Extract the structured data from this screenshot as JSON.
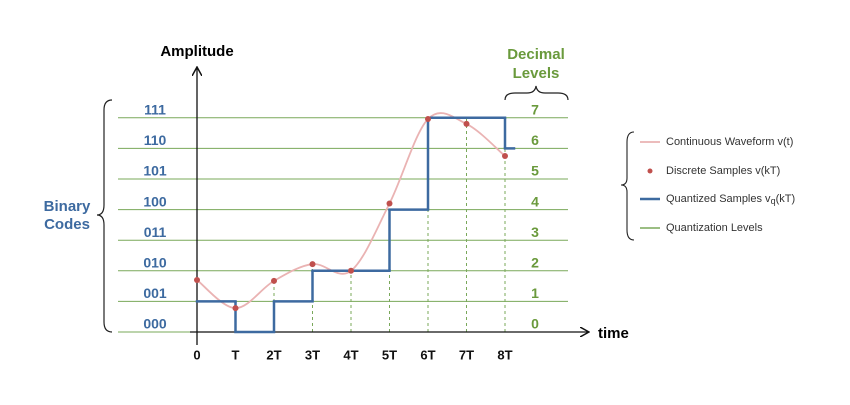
{
  "y_axis_label": "Amplitude",
  "x_axis_label": "time",
  "binary_codes_label": [
    "Binary",
    "Codes"
  ],
  "decimal_levels_label": [
    "Decimal",
    "Levels"
  ],
  "levels": [
    {
      "decimal": 0,
      "binary": "000"
    },
    {
      "decimal": 1,
      "binary": "001"
    },
    {
      "decimal": 2,
      "binary": "010"
    },
    {
      "decimal": 3,
      "binary": "011"
    },
    {
      "decimal": 4,
      "binary": "100"
    },
    {
      "decimal": 5,
      "binary": "101"
    },
    {
      "decimal": 6,
      "binary": "110"
    },
    {
      "decimal": 7,
      "binary": "111"
    }
  ],
  "time_labels": [
    "0",
    "T",
    "2T",
    "3T",
    "4T",
    "5T",
    "6T",
    "7T",
    "8T"
  ],
  "samples": [
    1.7,
    0.78,
    1.67,
    2.22,
    2.0,
    4.2,
    6.96,
    6.8,
    5.75
  ],
  "quantized": [
    1,
    0,
    1,
    2,
    2,
    4,
    7,
    7,
    6
  ],
  "legend": [
    {
      "text": "Continuous Waveform v(t)"
    },
    {
      "text": "Discrete Samples v(kT)"
    },
    {
      "text": "Quantized Samples v",
      "sub": "q",
      "after": "(kT)"
    },
    {
      "text": "Quantization Levels"
    }
  ]
}
